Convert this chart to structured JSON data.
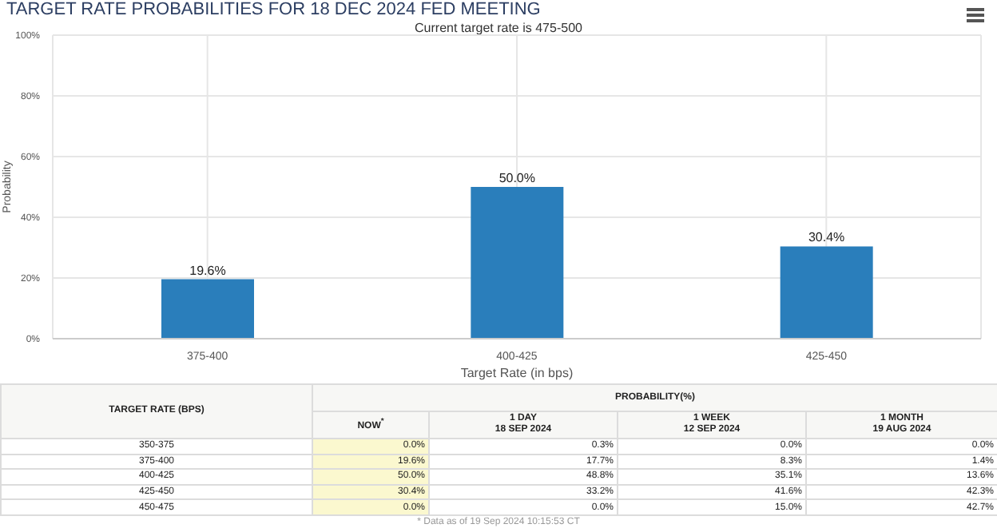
{
  "chart_data": [
    {
      "type": "bar",
      "title": "TARGET RATE PROBABILITIES FOR 18 DEC 2024 FED MEETING",
      "subtitle": "Current target rate is 475-500",
      "xlabel": "Target Rate (in bps)",
      "ylabel": "Probability",
      "categories": [
        "375-400",
        "400-425",
        "425-450"
      ],
      "values": [
        19.6,
        50.0,
        30.4
      ],
      "value_labels": [
        "19.6%",
        "50.0%",
        "30.4%"
      ],
      "color": "#2a7ebb",
      "ylim": [
        0,
        100
      ],
      "yticks": [
        {
          "value": 0,
          "label": "0%"
        },
        {
          "value": 20,
          "label": "20%"
        },
        {
          "value": 40,
          "label": "40%"
        },
        {
          "value": 60,
          "label": "60%"
        },
        {
          "value": 80,
          "label": "80%"
        },
        {
          "value": 100,
          "label": "100%"
        }
      ],
      "grid": true
    },
    {
      "type": "other",
      "title": "PROBABILITY(%)",
      "xlabel": "TARGET RATE (BPS)",
      "categories": [
        "350-375",
        "375-400",
        "400-425",
        "425-450",
        "450-475"
      ],
      "series": [
        {
          "name": "NOW$^{*}$",
          "color": "#fbf8cf",
          "values": [
            0.0,
            19.6,
            50.0,
            30.4,
            0.0
          ],
          "value_labels": [
            "0.0%",
            "19.6%",
            "50.0%",
            "30.4%",
            "0.0%"
          ]
        },
        {
          "name": "1 DAY\n18 SEP 2024",
          "color": "#ffffff",
          "values": [
            0.3,
            17.7,
            48.8,
            33.2,
            0.0
          ],
          "value_labels": [
            "0.3%",
            "17.7%",
            "48.8%",
            "33.2%",
            "0.0%"
          ]
        },
        {
          "name": "1 WEEK\n12 SEP 2024",
          "color": "#ffffff",
          "values": [
            0.0,
            8.3,
            35.1,
            41.6,
            15.0
          ],
          "value_labels": [
            "0.0%",
            "8.3%",
            "35.1%",
            "41.6%",
            "15.0%"
          ]
        },
        {
          "name": "1 MONTH\n19 AUG 2024",
          "color": "#ffffff",
          "values": [
            0.0,
            1.4,
            13.6,
            42.3,
            42.7
          ],
          "value_labels": [
            "0.0%",
            "1.4%",
            "13.6%",
            "42.3%",
            "42.7%"
          ]
        }
      ],
      "annotations": [
        "* Data as of 19 Sep 2024 10:15:53 CT"
      ]
    }
  ]
}
